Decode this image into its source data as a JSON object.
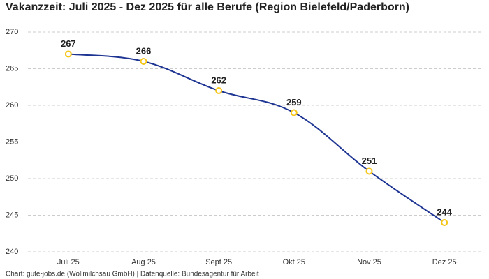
{
  "chart_data": {
    "type": "line",
    "title": "Vakanzzeit: Juli 2025 - Dez 2025 für alle Berufe (Region Bielefeld/Paderborn)",
    "categories": [
      "Juli 25",
      "Aug 25",
      "Sept 25",
      "Okt 25",
      "Nov 25",
      "Dez 25"
    ],
    "values": [
      267,
      266,
      262,
      259,
      251,
      244
    ],
    "color": "#1f3593",
    "marker_color": "#f5c518",
    "ylim": [
      240,
      270
    ],
    "yticks": [
      240,
      245,
      250,
      255,
      260,
      265,
      270
    ],
    "grid": true,
    "source": "Chart: gute-jobs.de (Wollmilchsau GmbH) | Datenquelle: Bundesagentur für Arbeit"
  }
}
